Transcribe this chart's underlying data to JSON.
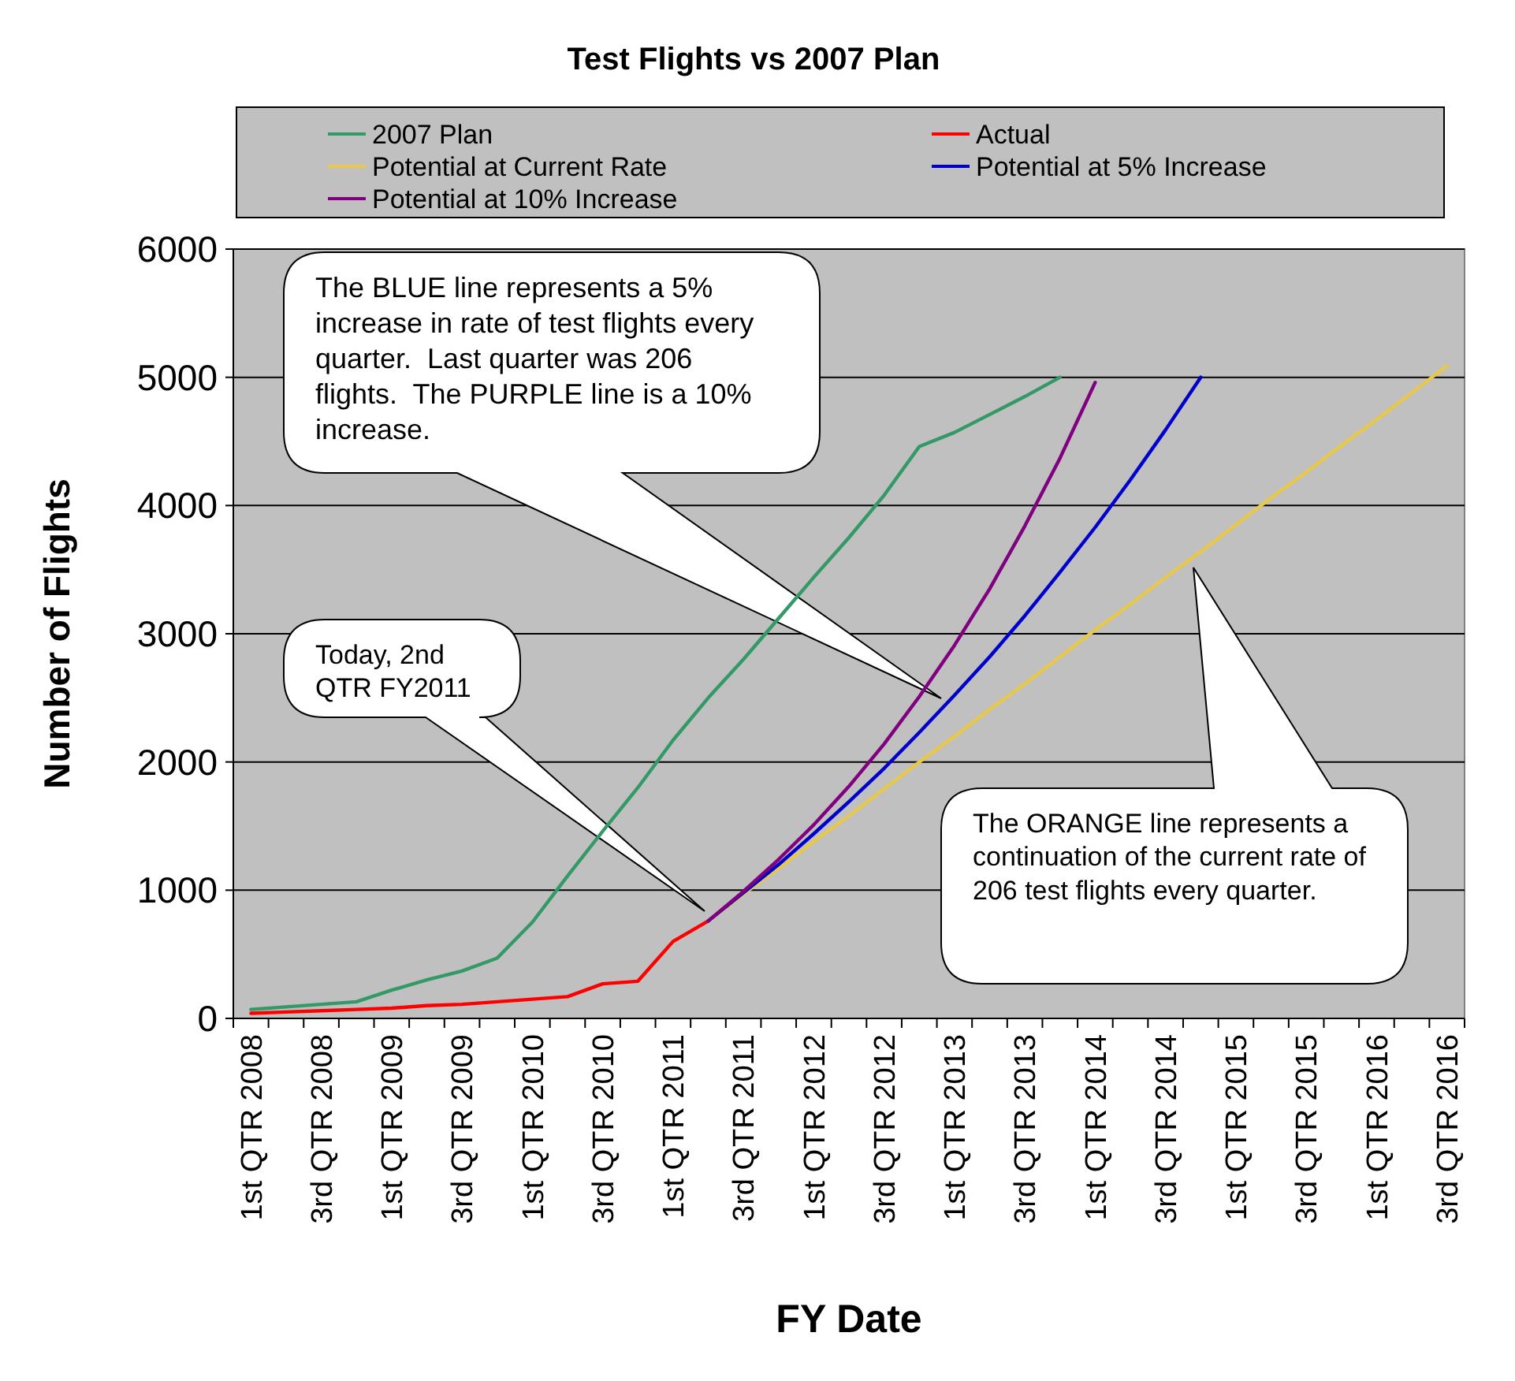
{
  "chart_data": {
    "type": "line",
    "title": "Test Flights vs 2007 Plan",
    "xlabel": "FY Date",
    "ylabel": "Number of Flights",
    "categories": [
      "1st QTR 2008",
      null,
      "3rd QTR 2008",
      null,
      "1st QTR 2009",
      null,
      "3rd QTR 2009",
      null,
      "1st QTR 2010",
      null,
      "3rd QTR 2010",
      null,
      "1st QTR 2011",
      null,
      "3rd QTR 2011",
      null,
      "1st QTR 2012",
      null,
      "3rd QTR 2012",
      null,
      "1st QTR 2013",
      null,
      "3rd QTR 2013",
      null,
      "1st QTR 2014",
      null,
      "3rd QTR 2014",
      null,
      "1st QTR 2015",
      null,
      "3rd QTR 2015",
      null,
      "1st QTR 2016",
      null,
      "3rd QTR 2016"
    ],
    "series": [
      {
        "name": "2007 Plan",
        "color": "#339966",
        "values": [
          70,
          90,
          110,
          130,
          220,
          300,
          370,
          470,
          750,
          1110,
          1460,
          1800,
          2170,
          2500,
          2800,
          3120,
          3440,
          3750,
          4080,
          4460,
          4570,
          4710,
          4850,
          5000,
          null,
          null,
          null,
          null,
          null,
          null,
          null,
          null,
          null,
          null,
          null
        ]
      },
      {
        "name": "Actual",
        "color": "#ff0000",
        "values": [
          40,
          50,
          60,
          70,
          80,
          100,
          110,
          130,
          150,
          170,
          270,
          290,
          600,
          760,
          null,
          null,
          null,
          null,
          null,
          null,
          null,
          null,
          null,
          null,
          null,
          null,
          null,
          null,
          null,
          null,
          null,
          null,
          null,
          null,
          null
        ]
      },
      {
        "name": "Potential at Current Rate",
        "color": "#e8c84a",
        "values": [
          null,
          null,
          null,
          null,
          null,
          null,
          null,
          null,
          null,
          null,
          null,
          null,
          null,
          760,
          970,
          1170,
          1380,
          1580,
          1790,
          2000,
          2200,
          2410,
          2610,
          2820,
          3030,
          3230,
          3440,
          3640,
          3850,
          4060,
          4260,
          4470,
          4670,
          4880,
          5090
        ]
      },
      {
        "name": "Potential at 5% Increase",
        "color": "#0000cc",
        "values": [
          null,
          null,
          null,
          null,
          null,
          null,
          null,
          null,
          null,
          null,
          null,
          null,
          null,
          760,
          980,
          1200,
          1440,
          1690,
          1950,
          2230,
          2520,
          2820,
          3140,
          3480,
          3830,
          4200,
          4590,
          5000,
          null,
          null,
          null,
          null,
          null,
          null,
          null
        ]
      },
      {
        "name": "Potential at 10% Increase",
        "color": "#800080",
        "values": [
          null,
          null,
          null,
          null,
          null,
          null,
          null,
          null,
          null,
          null,
          null,
          null,
          null,
          760,
          990,
          1240,
          1510,
          1810,
          2140,
          2510,
          2910,
          3350,
          3840,
          4370,
          4960,
          null,
          null,
          null,
          null,
          null,
          null,
          null,
          null,
          null,
          null
        ]
      }
    ],
    "ylim": [
      0,
      6000
    ],
    "yticks": [
      0,
      1000,
      2000,
      3000,
      4000,
      5000,
      6000
    ],
    "grid": "y",
    "legend": "top",
    "annotations": [
      "The BLUE line represents a 5% increase in rate of test flights every quarter.  Last quarter was 206 flights.  The PURPLE line is a 10% increase.",
      "Today, 2nd QTR FY2011",
      "The ORANGE line represents a continuation of the current rate of 206 test flights every quarter."
    ]
  }
}
